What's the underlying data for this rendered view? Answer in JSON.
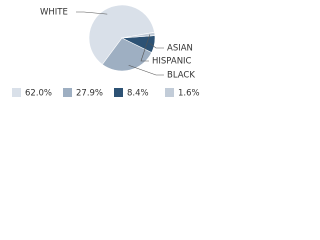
{
  "chart_data": {
    "type": "pie",
    "categories": [
      "WHITE",
      "BLACK",
      "ASIAN",
      "HISPANIC"
    ],
    "values": [
      62.0,
      27.9,
      8.4,
      1.6
    ],
    "value_labels": [
      "62.0%",
      "27.9%",
      "8.4%",
      "1.6%"
    ],
    "colors": [
      "#d9e0e9",
      "#9eafc2",
      "#2d5274",
      "#c2ccd8"
    ]
  }
}
